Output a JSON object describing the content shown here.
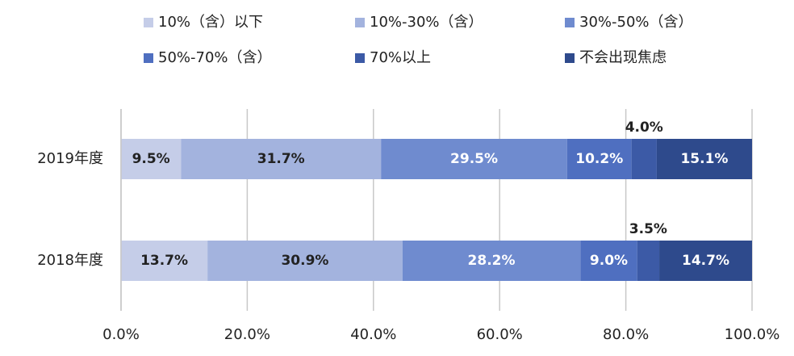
{
  "chart_data": {
    "type": "stacked-bar-horizontal",
    "categories": [
      "2019年度",
      "2018年度"
    ],
    "series": [
      {
        "name": "10%（含）以下",
        "color": "#c5cde8",
        "values": [
          9.5,
          13.7
        ],
        "value_labels": [
          "9.5%",
          "13.7%"
        ]
      },
      {
        "name": "10%-30%（含）",
        "color": "#a3b3de",
        "values": [
          31.7,
          30.9
        ],
        "value_labels": [
          "31.7%",
          "30.9%"
        ]
      },
      {
        "name": "30%-50%（含）",
        "color": "#6f8bcf",
        "values": [
          29.5,
          28.2
        ],
        "value_labels": [
          "29.5%",
          "28.2%"
        ]
      },
      {
        "name": "50%-70%（含）",
        "color": "#4f6fc0",
        "values": [
          10.2,
          9.0
        ],
        "value_labels": [
          "10.2%",
          "9.0%"
        ]
      },
      {
        "name": "70%以上",
        "color": "#3c5aa6",
        "values": [
          4.0,
          3.5
        ],
        "value_labels": [
          "4.0%",
          "3.5%"
        ]
      },
      {
        "name": "不会出现焦虑",
        "color": "#2e4a8c",
        "values": [
          15.1,
          14.7
        ],
        "value_labels": [
          "15.1%",
          "14.7%"
        ]
      }
    ],
    "xlim": [
      0,
      100
    ],
    "xticks": [
      {
        "value": 0,
        "label": "0.0%"
      },
      {
        "value": 20,
        "label": "20.0%"
      },
      {
        "value": 40,
        "label": "40.0%"
      },
      {
        "value": 60,
        "label": "60.0%"
      },
      {
        "value": 80,
        "label": "80.0%"
      },
      {
        "value": 100,
        "label": "100.0%"
      }
    ],
    "grid": true
  }
}
